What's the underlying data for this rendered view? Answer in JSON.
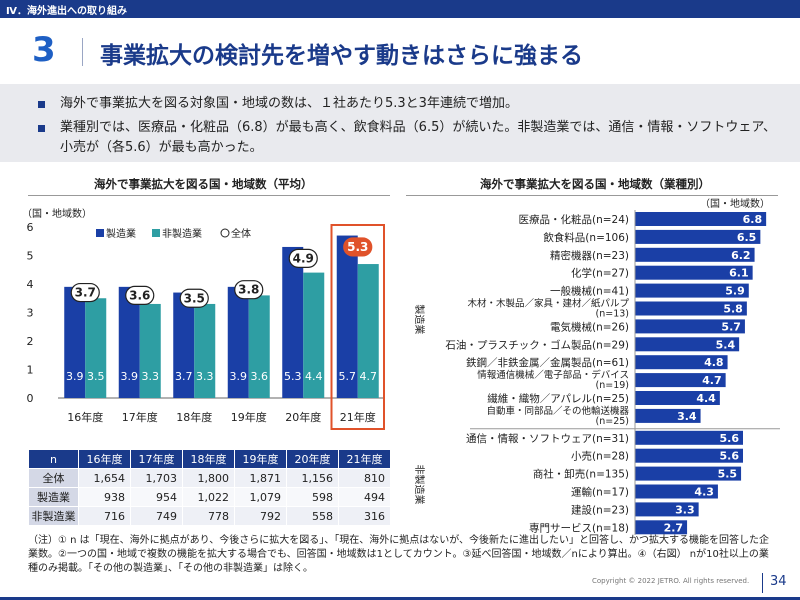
{
  "header": {
    "section_label": "Ⅳ．海外進出への取り組み"
  },
  "title": {
    "number": "3",
    "text": "事業拡大の検討先を増やす動きはさらに強まる"
  },
  "summary": [
    "海外で事業拡大を図る対象国・地域の数は、１社あたり5.3と3年連続で増加。",
    "業種別では、医療品・化粧品（6.8）が最も高く、飲食料品（6.5）が続いた。非製造業では、通信・情報・ソフトウェア、小売が（各5.6）が最も高かった。"
  ],
  "colors": {
    "navy": "#1a3a8a",
    "manufacturing": "#1a3fa6",
    "nonmanufacturing": "#2e9ea3",
    "highlight": "#e0522a"
  },
  "chart_data": [
    {
      "type": "bar",
      "title": "海外で事業拡大を図る国・地域数（平均）",
      "unit_label": "（国・地域数）",
      "categories": [
        "16年度",
        "17年度",
        "18年度",
        "19年度",
        "20年度",
        "21年度"
      ],
      "series": [
        {
          "name": "製造業",
          "values": [
            3.9,
            3.9,
            3.7,
            3.9,
            5.3,
            5.7
          ]
        },
        {
          "name": "非製造業",
          "values": [
            3.5,
            3.3,
            3.3,
            3.6,
            4.4,
            4.7
          ]
        }
      ],
      "overall": {
        "name": "全体",
        "values": [
          3.7,
          3.6,
          3.5,
          3.8,
          4.9,
          5.3
        ]
      },
      "ylim": [
        0,
        6
      ],
      "yticks": [
        0,
        1,
        2,
        3,
        4,
        5,
        6
      ],
      "highlight_category": "21年度",
      "legend_position": "top"
    },
    {
      "type": "bar",
      "orientation": "horizontal",
      "title": "海外で事業拡大を図る国・地域数（業種別）",
      "unit_label": "（国・地域数）",
      "groups": [
        {
          "name": "製造業",
          "items": [
            {
              "label": "医療品・化粧品(n=24)",
              "value": 6.8
            },
            {
              "label": "飲食料品(n=106)",
              "value": 6.5
            },
            {
              "label": "精密機器(n=23)",
              "value": 6.2
            },
            {
              "label": "化学(n=27)",
              "value": 6.1
            },
            {
              "label": "一般機械(n=41)",
              "value": 5.9
            },
            {
              "label": "木材・木製品／家具・建材／紙パルプ(n=13)",
              "value": 5.8
            },
            {
              "label": "電気機械(n=26)",
              "value": 5.7
            },
            {
              "label": "石油・プラスチック・ゴム製品(n=29)",
              "value": 5.4
            },
            {
              "label": "鉄鋼／非鉄金属／金属製品(n=61)",
              "value": 4.8
            },
            {
              "label": "情報通信機械／電子部品・デバイス(n=19)",
              "value": 4.7
            },
            {
              "label": "繊維・織物／アパレル(n=25)",
              "value": 4.4
            },
            {
              "label": "自動車・同部品／その他輸送機器(n=25)",
              "value": 3.4
            }
          ]
        },
        {
          "name": "非製造業",
          "items": [
            {
              "label": "通信・情報・ソフトウェア(n=31)",
              "value": 5.6
            },
            {
              "label": "小売(n=28)",
              "value": 5.6
            },
            {
              "label": "商社・卸売(n=135)",
              "value": 5.5
            },
            {
              "label": "運輸(n=17)",
              "value": 4.3
            },
            {
              "label": "建設(n=23)",
              "value": 3.3
            },
            {
              "label": "専門サービス(n=18)",
              "value": 2.7
            }
          ]
        }
      ],
      "xlim": [
        0,
        7
      ]
    }
  ],
  "table": {
    "headers": [
      "n",
      "16年度",
      "17年度",
      "18年度",
      "19年度",
      "20年度",
      "21年度"
    ],
    "rows": [
      [
        "全体",
        "1,654",
        "1,703",
        "1,800",
        "1,871",
        "1,156",
        "810"
      ],
      [
        "製造業",
        "938",
        "954",
        "1,022",
        "1,079",
        "598",
        "494"
      ],
      [
        "非製造業",
        "716",
        "749",
        "778",
        "792",
        "558",
        "316"
      ]
    ]
  },
  "note": "（注）① n は「現在、海外に拠点があり、今後さらに拡大を図る」、「現在、海外に拠点はないが、今後新たに進出したい」と回答し、かつ拡大する機能を回答した企業数。②一つの国・地域で複数の機能を拡大する場合でも、回答国・地域数は1としてカウント。③延べ回答国・地域数／nにより算出。④（右図） nが10社以上の業種のみ掲載。「その他の製造業」、「その他の非製造業」は除く。",
  "footer": {
    "copyright": "Copyright © 2022 JETRO. All rights reserved.",
    "page": "34"
  }
}
